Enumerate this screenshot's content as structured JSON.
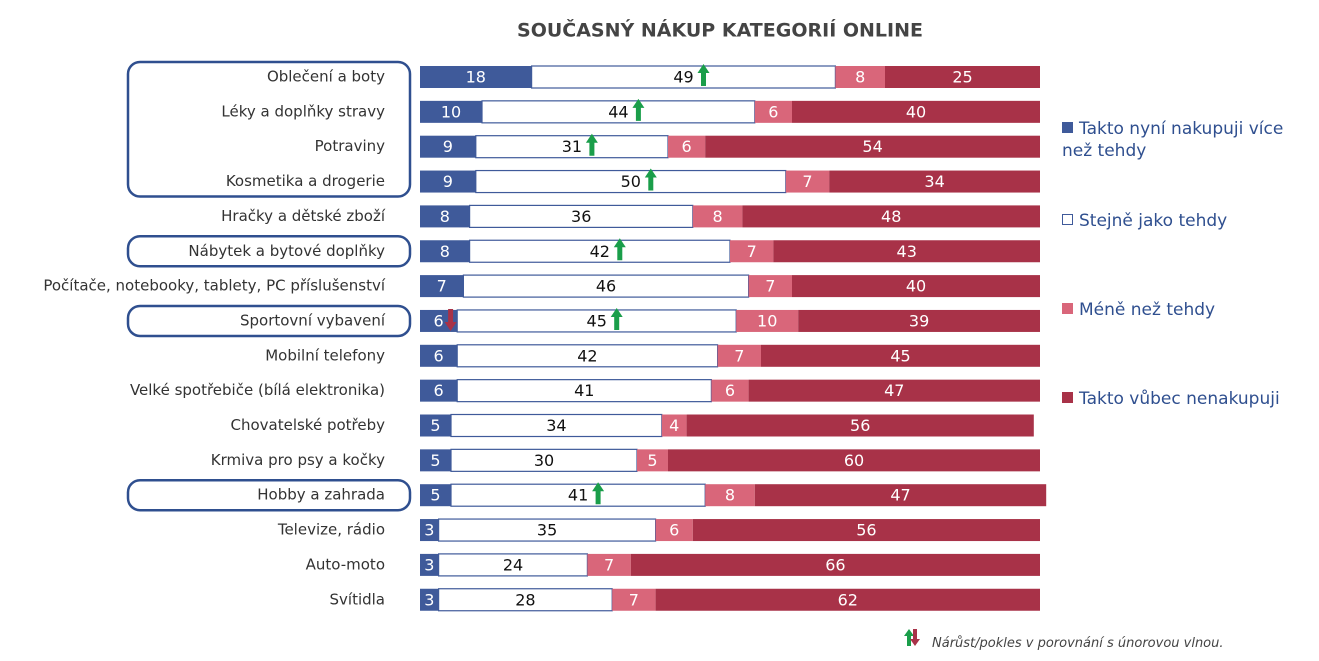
{
  "chart_data": {
    "type": "stacked_barh",
    "title": "SOUČASNÝ NÁKUP KATEGORIÍ ONLINE",
    "categories": [
      "Oblečení a boty",
      "Léky a doplňky stravy",
      "Potraviny",
      "Kosmetika a drogerie",
      "Hračky a dětské zboží",
      "Nábytek a bytové doplňky",
      "Počítače, notebooky, tablety, PC příslušenství",
      "Sportovní vybavení",
      "Mobilní telefony",
      "Velké spotřebiče (bílá elektronika)",
      "Chovatelské potřeby",
      "Krmiva pro psy a kočky",
      "Hobby a zahrada",
      "Televize, rádio",
      "Auto-moto",
      "Svítidla"
    ],
    "series": [
      {
        "name": "Takto nyní nakupuji více než tehdy",
        "color": "#3f5a9a",
        "values": [
          18,
          10,
          9,
          9,
          8,
          8,
          7,
          6,
          6,
          6,
          5,
          5,
          5,
          3,
          3,
          3
        ]
      },
      {
        "name": "Stejně jako tehdy",
        "color": "#ffffff",
        "values": [
          49,
          44,
          31,
          50,
          36,
          42,
          46,
          45,
          42,
          41,
          34,
          30,
          41,
          35,
          24,
          28
        ]
      },
      {
        "name": "Méně než tehdy",
        "color": "#d9667a",
        "values": [
          8,
          6,
          6,
          7,
          8,
          7,
          7,
          10,
          7,
          6,
          4,
          5,
          8,
          6,
          7,
          7
        ]
      },
      {
        "name": "Takto vůbec nenakupuji",
        "color": "#a83248",
        "values": [
          25,
          40,
          54,
          34,
          48,
          43,
          40,
          39,
          45,
          47,
          56,
          60,
          47,
          56,
          66,
          62
        ]
      }
    ],
    "xlim": [
      0,
      100
    ],
    "trend_arrows": [
      {
        "category": "Oblečení a boty",
        "series": "Stejně jako tehdy",
        "direction": "up"
      },
      {
        "category": "Léky a doplňky stravy",
        "series": "Stejně jako tehdy",
        "direction": "up"
      },
      {
        "category": "Potraviny",
        "series": "Stejně jako tehdy",
        "direction": "up"
      },
      {
        "category": "Kosmetika a drogerie",
        "series": "Stejně jako tehdy",
        "direction": "up"
      },
      {
        "category": "Nábytek a bytové doplňky",
        "series": "Stejně jako tehdy",
        "direction": "up"
      },
      {
        "category": "Sportovní vybavení",
        "series": "Takto nyní nakupuji více než tehdy",
        "direction": "down"
      },
      {
        "category": "Sportovní vybavení",
        "series": "Stejně jako tehdy",
        "direction": "up"
      },
      {
        "category": "Hobby a zahrada",
        "series": "Stejně jako tehdy",
        "direction": "up"
      }
    ],
    "footnote": "Nárůst/pokles v porovnání s únorovou vlnou."
  }
}
